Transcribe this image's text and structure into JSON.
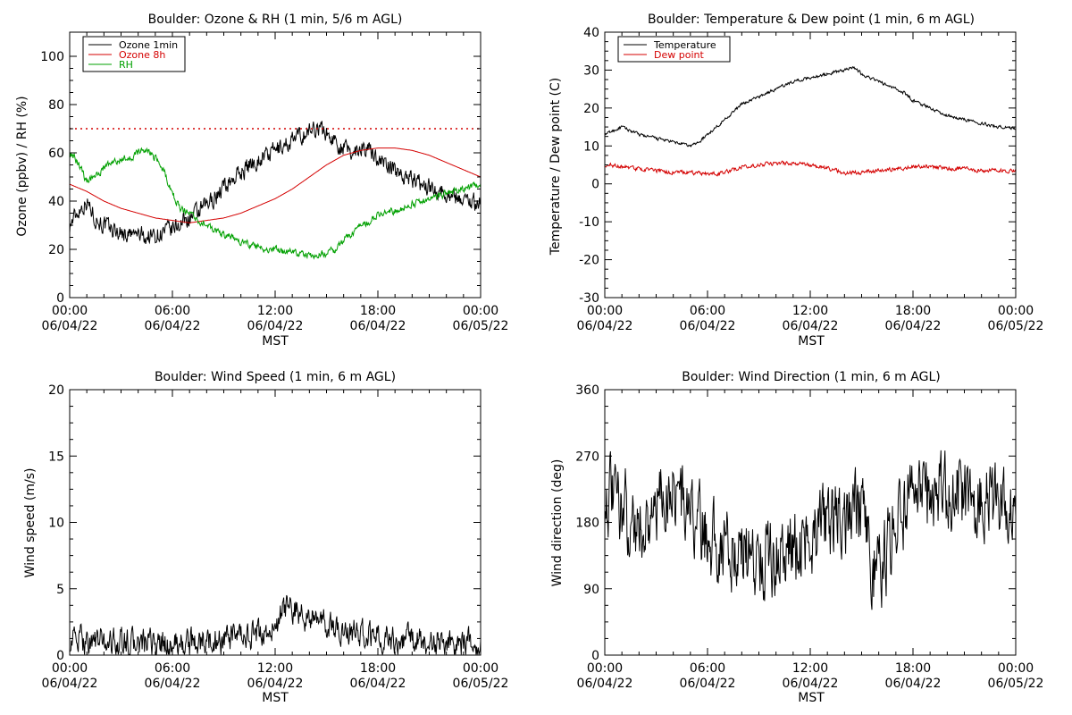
{
  "chart_data": [
    {
      "id": "ozone",
      "type": "line",
      "title": "Boulder: Ozone & RH (1 min, 5/6 m AGL)",
      "xlabel": "MST",
      "ylabel": "Ozone (ppbv) / RH (%)",
      "xlim": [
        0,
        24
      ],
      "ylim": [
        0,
        110
      ],
      "yticks": [
        0,
        20,
        40,
        60,
        80,
        100
      ],
      "xticks": [
        {
          "x": 0,
          "time": "00:00",
          "date": "06/04/22"
        },
        {
          "x": 6,
          "time": "06:00",
          "date": "06/04/22"
        },
        {
          "x": 12,
          "time": "12:00",
          "date": "06/04/22"
        },
        {
          "x": 18,
          "time": "18:00",
          "date": "06/04/22"
        },
        {
          "x": 24,
          "time": "00:00",
          "date": "06/05/22"
        }
      ],
      "reference_line": {
        "y": 70,
        "color": "#d40000",
        "style": "dotted"
      },
      "legend_position": "top-left",
      "series": [
        {
          "name": "Ozone 1min",
          "color": "#000000",
          "noise": 3.2,
          "x": [
            0,
            0.5,
            1,
            1.5,
            2,
            2.5,
            3,
            3.5,
            4,
            4.5,
            5,
            5.5,
            6,
            6.5,
            7,
            7.5,
            8,
            8.5,
            9,
            9.5,
            10,
            10.5,
            11,
            11.5,
            12,
            12.5,
            13,
            13.5,
            14,
            14.5,
            15,
            15.5,
            16,
            16.5,
            17,
            17.5,
            18,
            18.5,
            19,
            19.5,
            20,
            20.5,
            21,
            21.5,
            22,
            22.5,
            23,
            23.5,
            24
          ],
          "y": [
            30,
            36,
            40,
            33,
            30,
            28,
            27,
            26,
            26,
            25,
            26,
            27,
            28,
            31,
            33,
            35,
            38,
            42,
            46,
            49,
            52,
            55,
            57,
            59,
            61,
            63,
            65,
            67,
            69,
            71,
            68,
            65,
            62,
            60,
            63,
            61,
            58,
            55,
            53,
            51,
            49,
            47,
            46,
            45,
            43,
            42,
            41,
            40,
            39
          ]
        },
        {
          "name": "Ozone 8h",
          "color": "#d40000",
          "noise": 0,
          "x": [
            0,
            1,
            2,
            3,
            4,
            5,
            6,
            7,
            8,
            9,
            10,
            11,
            12,
            13,
            14,
            15,
            16,
            17,
            18,
            19,
            20,
            21,
            22,
            23,
            24
          ],
          "y": [
            47,
            44,
            40,
            37,
            35,
            33,
            32,
            31,
            32,
            33,
            35,
            38,
            41,
            45,
            50,
            55,
            59,
            61,
            62,
            62,
            61,
            59,
            56,
            53,
            50
          ]
        },
        {
          "name": "RH",
          "color": "#00a000",
          "noise": 1.3,
          "x": [
            0,
            0.5,
            1,
            1.5,
            2,
            2.5,
            3,
            3.5,
            4,
            4.5,
            5,
            5.5,
            6,
            6.5,
            7,
            7.5,
            8,
            8.5,
            9,
            9.5,
            10,
            10.5,
            11,
            11.5,
            12,
            12.5,
            13,
            13.5,
            14,
            14.5,
            15,
            15.5,
            16,
            16.5,
            17,
            17.5,
            18,
            18.5,
            19,
            19.5,
            20,
            20.5,
            21,
            21.5,
            22,
            22.5,
            23,
            23.5,
            24
          ],
          "y": [
            60,
            56,
            48,
            50,
            54,
            56,
            57,
            58,
            60,
            61,
            58,
            53,
            43,
            37,
            35,
            32,
            30,
            28,
            26,
            25,
            23,
            22,
            21,
            20,
            20,
            19,
            19,
            18,
            17,
            18,
            18,
            20,
            24,
            27,
            30,
            32,
            34,
            35,
            36,
            37,
            39,
            40,
            41,
            42,
            43,
            44,
            45,
            46,
            48
          ]
        }
      ]
    },
    {
      "id": "temp",
      "type": "line",
      "title": "Boulder: Temperature & Dew point (1 min, 6 m AGL)",
      "xlabel": "MST",
      "ylabel": "Temperature / Dew point (C)",
      "xlim": [
        0,
        24
      ],
      "ylim": [
        -30,
        40
      ],
      "yticks": [
        -30,
        -20,
        -10,
        0,
        10,
        20,
        30,
        40
      ],
      "xticks": [
        {
          "x": 0,
          "time": "00:00",
          "date": "06/04/22"
        },
        {
          "x": 6,
          "time": "06:00",
          "date": "06/04/22"
        },
        {
          "x": 12,
          "time": "12:00",
          "date": "06/04/22"
        },
        {
          "x": 18,
          "time": "18:00",
          "date": "06/04/22"
        },
        {
          "x": 24,
          "time": "00:00",
          "date": "06/05/22"
        }
      ],
      "legend_position": "top-left",
      "series": [
        {
          "name": "Temperature",
          "color": "#000000",
          "noise": 0.35,
          "x": [
            0,
            0.5,
            1,
            1.5,
            2,
            2.5,
            3,
            3.5,
            4,
            4.5,
            5,
            5.5,
            6,
            6.5,
            7,
            7.5,
            8,
            8.5,
            9,
            9.5,
            10,
            10.5,
            11,
            11.5,
            12,
            12.5,
            13,
            13.5,
            14,
            14.5,
            15,
            15.5,
            16,
            16.5,
            17,
            17.5,
            18,
            18.5,
            19,
            19.5,
            20,
            20.5,
            21,
            21.5,
            22,
            22.5,
            23,
            23.5,
            24
          ],
          "y": [
            13,
            14,
            15,
            14,
            13,
            12.5,
            12,
            11.5,
            11,
            10.5,
            10,
            11,
            13,
            15,
            17,
            19,
            21,
            22,
            23,
            24,
            25,
            26,
            27,
            27.5,
            28,
            28.5,
            29,
            29.5,
            30,
            31,
            29,
            28,
            27,
            26,
            25,
            24,
            22,
            21,
            20,
            19,
            18,
            17.5,
            17,
            16.5,
            16,
            15.5,
            15,
            15,
            14.5
          ]
        },
        {
          "name": "Dew point",
          "color": "#d40000",
          "noise": 0.45,
          "x": [
            0,
            1,
            2,
            3,
            4,
            5,
            6,
            7,
            8,
            9,
            10,
            11,
            12,
            13,
            14,
            15,
            16,
            17,
            18,
            19,
            20,
            21,
            22,
            23,
            24
          ],
          "y": [
            5,
            4.5,
            4,
            3.5,
            3,
            3,
            2.5,
            3,
            4.5,
            5,
            5.5,
            5.5,
            5,
            4,
            3,
            3,
            3.5,
            4,
            4.5,
            4.5,
            4,
            4,
            3.5,
            3.5,
            3.5
          ]
        }
      ]
    },
    {
      "id": "wspd",
      "type": "line",
      "title": "Boulder: Wind Speed (1 min, 6 m AGL)",
      "xlabel": "MST",
      "ylabel": "Wind speed (m/s)",
      "xlim": [
        0,
        24
      ],
      "ylim": [
        0,
        20
      ],
      "yticks": [
        0,
        5,
        10,
        15,
        20
      ],
      "xticks": [
        {
          "x": 0,
          "time": "00:00",
          "date": "06/04/22"
        },
        {
          "x": 6,
          "time": "06:00",
          "date": "06/04/22"
        },
        {
          "x": 12,
          "time": "12:00",
          "date": "06/04/22"
        },
        {
          "x": 18,
          "time": "18:00",
          "date": "06/04/22"
        },
        {
          "x": 24,
          "time": "00:00",
          "date": "06/05/22"
        }
      ],
      "series": [
        {
          "name": "",
          "color": "#000000",
          "noise": 0.9,
          "x": [
            0,
            1,
            2,
            3,
            4,
            5,
            6,
            7,
            8,
            9,
            10,
            11,
            12,
            12.5,
            13,
            13.5,
            14,
            15,
            16,
            17,
            18,
            19,
            20,
            21,
            22,
            23,
            24
          ],
          "y": [
            1.2,
            1.1,
            1,
            0.9,
            0.8,
            0.8,
            0.8,
            0.9,
            1,
            1.1,
            1.3,
            1.6,
            1.9,
            3.5,
            3.5,
            3,
            2.8,
            2.2,
            1.8,
            1.6,
            1.4,
            1.2,
            1.1,
            1,
            0.9,
            0.9,
            0.8
          ]
        }
      ]
    },
    {
      "id": "wdir",
      "type": "line",
      "title": "Boulder: Wind Direction (1 min, 6 m AGL)",
      "xlabel": "MST",
      "ylabel": "Wind direction (deg)",
      "xlim": [
        0,
        24
      ],
      "ylim": [
        0,
        360
      ],
      "yticks": [
        0,
        90,
        180,
        270,
        360
      ],
      "xticks": [
        {
          "x": 0,
          "time": "00:00",
          "date": "06/04/22"
        },
        {
          "x": 6,
          "time": "06:00",
          "date": "06/04/22"
        },
        {
          "x": 12,
          "time": "12:00",
          "date": "06/04/22"
        },
        {
          "x": 18,
          "time": "18:00",
          "date": "06/04/22"
        },
        {
          "x": 24,
          "time": "00:00",
          "date": "06/05/22"
        }
      ],
      "series": [
        {
          "name": "",
          "color": "#000000",
          "noise": 45,
          "x": [
            0,
            1,
            2,
            3,
            4,
            5,
            6,
            7,
            8,
            9,
            10,
            11,
            12,
            13,
            14,
            15,
            15.5,
            16,
            16.5,
            17,
            18,
            19,
            20,
            21,
            22,
            23,
            24
          ],
          "y": [
            220,
            200,
            170,
            200,
            230,
            190,
            160,
            150,
            140,
            135,
            140,
            145,
            160,
            175,
            190,
            200,
            120,
            110,
            140,
            190,
            210,
            215,
            220,
            215,
            210,
            205,
            210
          ]
        }
      ]
    }
  ]
}
